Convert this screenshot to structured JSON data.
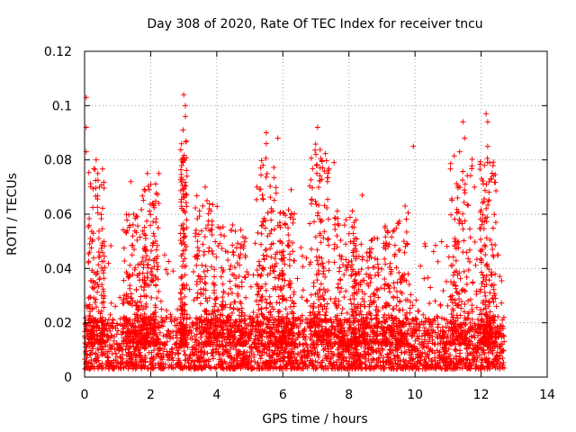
{
  "chart_data": {
    "type": "scatter",
    "title": "Day 308 of 2020, Rate Of TEC Index for receiver tncu",
    "xlabel": "GPS time / hours",
    "ylabel": "ROTI / TECUs",
    "xlim": [
      0,
      14
    ],
    "ylim": [
      0,
      0.12
    ],
    "x_ticks": [
      "0",
      "2",
      "4",
      "6",
      "8",
      "10",
      "12",
      "14"
    ],
    "y_ticks": [
      "0",
      "0.02",
      "0.04",
      "0.06",
      "0.08",
      "0.1",
      "0.12"
    ],
    "grid": true,
    "legend": "none",
    "marker": "+",
    "color": "#ff0000",
    "x_range_of_data": [
      0,
      12.7
    ],
    "baseline_band": [
      0.003,
      0.022
    ],
    "peaks": [
      {
        "x": 0.05,
        "y": 0.103
      },
      {
        "x": 0.05,
        "y": 0.092
      },
      {
        "x": 0.05,
        "y": 0.083
      },
      {
        "x": 0.35,
        "y": 0.08
      },
      {
        "x": 0.4,
        "y": 0.075
      },
      {
        "x": 0.45,
        "y": 0.07
      },
      {
        "x": 1.4,
        "y": 0.072
      },
      {
        "x": 1.9,
        "y": 0.075
      },
      {
        "x": 2.25,
        "y": 0.075
      },
      {
        "x": 3.0,
        "y": 0.104
      },
      {
        "x": 3.05,
        "y": 0.1
      },
      {
        "x": 3.05,
        "y": 0.096
      },
      {
        "x": 2.98,
        "y": 0.091
      },
      {
        "x": 3.1,
        "y": 0.074
      },
      {
        "x": 3.65,
        "y": 0.07
      },
      {
        "x": 5.5,
        "y": 0.09
      },
      {
        "x": 5.5,
        "y": 0.086
      },
      {
        "x": 5.4,
        "y": 0.078
      },
      {
        "x": 5.85,
        "y": 0.088
      },
      {
        "x": 6.25,
        "y": 0.069
      },
      {
        "x": 7.05,
        "y": 0.092
      },
      {
        "x": 7.0,
        "y": 0.082
      },
      {
        "x": 7.55,
        "y": 0.079
      },
      {
        "x": 7.35,
        "y": 0.072
      },
      {
        "x": 8.4,
        "y": 0.067
      },
      {
        "x": 9.7,
        "y": 0.063
      },
      {
        "x": 9.95,
        "y": 0.085
      },
      {
        "x": 11.45,
        "y": 0.094
      },
      {
        "x": 11.5,
        "y": 0.088
      },
      {
        "x": 11.35,
        "y": 0.083
      },
      {
        "x": 12.15,
        "y": 0.097
      },
      {
        "x": 12.2,
        "y": 0.094
      },
      {
        "x": 12.2,
        "y": 0.085
      },
      {
        "x": 12.1,
        "y": 0.078
      },
      {
        "x": 11.8,
        "y": 0.07
      },
      {
        "x": 12.5,
        "y": 0.045
      }
    ]
  }
}
